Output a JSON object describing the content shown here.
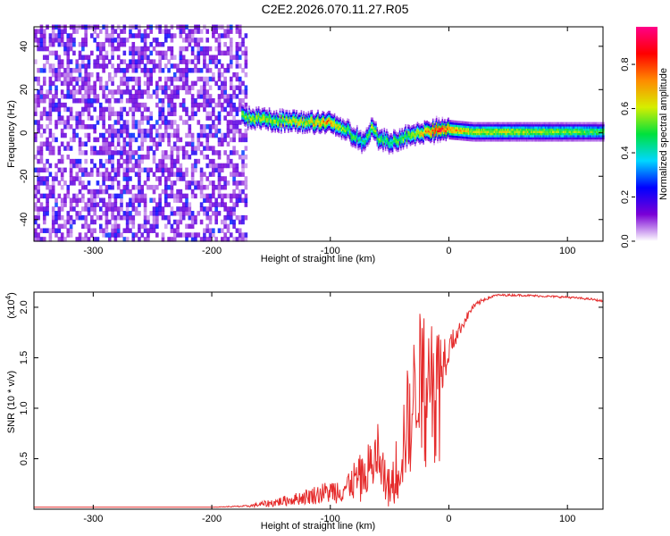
{
  "title": "C2E2.2026.070.11.27.R05",
  "chart_data": [
    {
      "type": "heatmap",
      "name": "spectrogram",
      "xlabel": "Height of straight line (km)",
      "ylabel": "Frequency (Hz)",
      "xlim": [
        -350,
        130
      ],
      "ylim": [
        -50,
        49
      ],
      "x_ticks": [
        -300,
        -200,
        -100,
        0,
        100
      ],
      "x_tick_labels": [
        "-300",
        "-200",
        "-100",
        "0",
        "100"
      ],
      "y_ticks": [
        -40,
        -20,
        0,
        20,
        40
      ],
      "y_tick_labels": [
        "-40",
        "-20",
        "0",
        "20",
        "40"
      ],
      "noise_region_x": [
        -350,
        -170
      ],
      "ridge": {
        "x": [
          -175,
          -160,
          -140,
          -120,
          -100,
          -90,
          -80,
          -72,
          -65,
          -60,
          -50,
          -40,
          -30,
          -20,
          -10,
          0,
          20,
          50,
          100,
          130
        ],
        "frequency": [
          7,
          6,
          5,
          4.5,
          4.5,
          2,
          -2,
          -5,
          2,
          -3,
          -5,
          -3,
          -1,
          0,
          1,
          1,
          0,
          0,
          0,
          0
        ],
        "amplitude": [
          0.55,
          0.6,
          0.62,
          0.65,
          0.75,
          0.55,
          0.5,
          0.45,
          0.6,
          0.55,
          0.5,
          0.55,
          0.6,
          0.7,
          0.9,
          0.75,
          0.6,
          0.6,
          0.55,
          0.5
        ]
      },
      "colorbar": {
        "label": "Normalized spectral amplitude",
        "range": [
          0.0,
          0.97
        ],
        "ticks": [
          0.0,
          0.2,
          0.4,
          0.6,
          0.8
        ],
        "tick_labels": [
          "0.0",
          "0.2",
          "0.4",
          "0.6",
          "0.8"
        ],
        "colors": [
          "#ffffff",
          "#7a00d6",
          "#0000ff",
          "#00d7ff",
          "#00e13c",
          "#d6ee00",
          "#ff8a00",
          "#ff0000",
          "#ff0088"
        ]
      }
    },
    {
      "type": "line",
      "name": "snr",
      "xlabel": "Height of straight line (km)",
      "ylabel": "SNR (10 * v/v)",
      "scale_note": "(x10",
      "scale_exponent": "4",
      "xlim": [
        -350,
        130
      ],
      "ylim": [
        0,
        2.15
      ],
      "x_ticks": [
        -300,
        -200,
        -100,
        0,
        100
      ],
      "x_tick_labels": [
        "-300",
        "-200",
        "-100",
        "0",
        "100"
      ],
      "y_ticks": [
        0.5,
        1.0,
        1.5,
        2.0
      ],
      "y_tick_labels": [
        "0.5",
        "1.0",
        "1.5",
        "2.0"
      ],
      "color": "#e52b2b",
      "x": [
        -350,
        -300,
        -250,
        -200,
        -170,
        -150,
        -130,
        -110,
        -90,
        -80,
        -70,
        -65,
        -60,
        -55,
        -50,
        -45,
        -40,
        -35,
        -30,
        -25,
        -20,
        -15,
        -10,
        -5,
        0,
        10,
        20,
        30,
        40,
        60,
        80,
        100,
        120,
        130
      ],
      "y": [
        0.02,
        0.02,
        0.02,
        0.02,
        0.03,
        0.06,
        0.1,
        0.15,
        0.2,
        0.28,
        0.35,
        0.45,
        0.55,
        0.3,
        0.2,
        0.35,
        0.6,
        0.85,
        1.1,
        1.35,
        1.45,
        1.55,
        1.45,
        1.5,
        1.6,
        1.8,
        2.0,
        2.08,
        2.12,
        2.12,
        2.11,
        2.1,
        2.08,
        2.06
      ],
      "noise": [
        0,
        0,
        0,
        0,
        0.01,
        0.04,
        0.06,
        0.1,
        0.14,
        0.2,
        0.25,
        0.3,
        0.35,
        0.25,
        0.2,
        0.35,
        0.45,
        0.55,
        0.6,
        0.6,
        0.6,
        0.55,
        0.35,
        0.3,
        0.15,
        0.06,
        0.03,
        0.02,
        0.01,
        0.01,
        0.01,
        0.01,
        0.01,
        0.01
      ]
    }
  ]
}
